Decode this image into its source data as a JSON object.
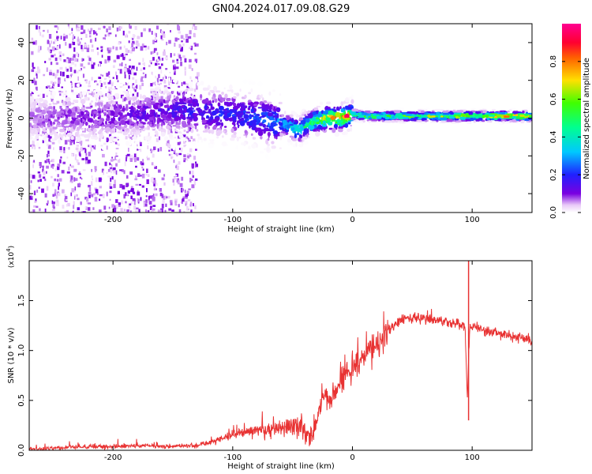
{
  "title": "GN04.2024.017.09.08.G29",
  "colors": {
    "snr_line": "#e83232",
    "colormap": [
      "#ffffff",
      "#e8d4f8",
      "#9b59e0",
      "#6a00d8",
      "#2828ff",
      "#00c8ff",
      "#00ff80",
      "#80ff00",
      "#ffe000",
      "#ff4000",
      "#ff0080"
    ]
  },
  "chart_data": [
    {
      "type": "heatmap",
      "xlabel": "Height of straight line (km)",
      "ylabel": "Frequency (Hz)",
      "xlim": [
        -270,
        150
      ],
      "ylim": [
        -50,
        50
      ],
      "xticks": [
        -200,
        -100,
        0,
        100
      ],
      "xtick_labels": [
        "-200",
        "-100",
        "0",
        "100"
      ],
      "yticks": [
        -40,
        -20,
        0,
        20,
        40
      ],
      "ytick_labels": [
        "-40",
        "-20",
        "0",
        "20",
        "40"
      ],
      "colorbar": {
        "label": "Normalized spectral amplitude",
        "range": [
          0,
          1
        ],
        "ticks": [
          0,
          0.2,
          0.4,
          0.6,
          0.8
        ],
        "tick_labels": [
          "0.0",
          "0.2",
          "0.4",
          "0.6",
          "0.8"
        ]
      },
      "ridge": {
        "x": [
          -270,
          -240,
          -200,
          -160,
          -140,
          -120,
          -100,
          -80,
          -60,
          -50,
          -45,
          -40,
          -30,
          -20,
          -10,
          -5,
          0,
          10,
          30,
          60,
          90,
          120,
          150
        ],
        "y": [
          0,
          0,
          1,
          3,
          4,
          3,
          2,
          0,
          -3,
          -5,
          -7,
          -4,
          -1,
          0,
          0,
          1,
          2,
          1,
          1,
          1,
          1,
          1,
          1
        ],
        "amplitude": [
          0.08,
          0.1,
          0.12,
          0.15,
          0.18,
          0.2,
          0.22,
          0.25,
          0.3,
          0.38,
          0.45,
          0.5,
          0.6,
          0.75,
          0.85,
          0.9,
          0.6,
          0.55,
          0.55,
          0.6,
          0.7,
          0.75,
          0.78
        ]
      }
    },
    {
      "type": "line",
      "xlabel": "Height of straight line (km)",
      "ylabel": "SNR (10 * v/v)",
      "scale_label": "(x10",
      "scale_exponent": "4",
      "scale_suffix": ")",
      "xlim": [
        -270,
        150
      ],
      "ylim": [
        0,
        1.9
      ],
      "xticks": [
        -200,
        -100,
        0,
        100
      ],
      "xtick_labels": [
        "-200",
        "-100",
        "0",
        "100"
      ],
      "yticks": [
        0,
        0.5,
        1.0,
        1.5
      ],
      "ytick_labels": [
        "0.0",
        "0.5",
        "1.0",
        "1.5"
      ],
      "series": [
        {
          "x": [
            -270,
            -250,
            -230,
            -210,
            -190,
            -170,
            -150,
            -130,
            -120,
            -110,
            -100,
            -90,
            -80,
            -70,
            -60,
            -50,
            -40,
            -35,
            -30,
            -25,
            -20,
            -15,
            -10,
            0,
            10,
            20,
            30,
            40,
            50,
            60,
            70,
            80,
            90,
            94,
            96,
            98,
            100,
            110,
            120,
            130,
            140,
            150
          ],
          "y": [
            0.01,
            0.02,
            0.03,
            0.04,
            0.04,
            0.05,
            0.04,
            0.05,
            0.08,
            0.12,
            0.16,
            0.18,
            0.2,
            0.2,
            0.22,
            0.25,
            0.22,
            0.1,
            0.3,
            0.6,
            0.45,
            0.55,
            0.7,
            0.85,
            0.95,
            1.05,
            1.2,
            1.3,
            1.33,
            1.33,
            1.3,
            1.28,
            1.27,
            1.25,
            0.5,
            1.25,
            1.24,
            1.2,
            1.17,
            1.15,
            1.13,
            1.1
          ]
        }
      ]
    }
  ]
}
